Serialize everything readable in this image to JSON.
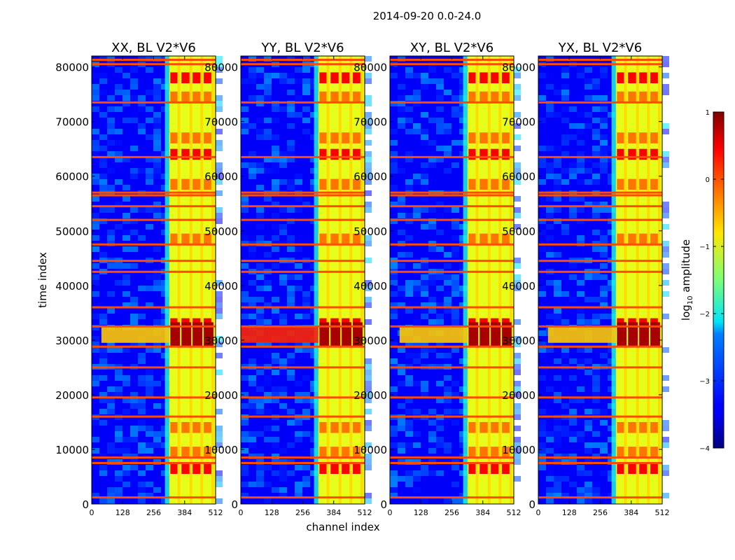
{
  "figure_title": "2014-09-20 0.0-24.0",
  "colorbar": {
    "label_prefix": "log",
    "label_sub": "10",
    "label_suffix": " amplitude",
    "ticks": [
      1,
      0,
      -1,
      -2,
      -3,
      -4
    ],
    "tick_labels": [
      "1",
      "0",
      "−1",
      "−2",
      "−3",
      "−4"
    ],
    "vmin": -4,
    "vmax": 1,
    "colormap": "jet"
  },
  "chart_data": {
    "type": "heatmap",
    "xlabel": "channel index",
    "ylabel": "time index",
    "xlim": [
      0,
      512
    ],
    "ylim": [
      0,
      82000
    ],
    "xticks": [
      0,
      128,
      256,
      384,
      512
    ],
    "xtick_labels": [
      "0",
      "128",
      "256",
      "384",
      "512"
    ],
    "yticks": [
      0,
      10000,
      20000,
      30000,
      40000,
      50000,
      60000,
      70000,
      80000
    ],
    "ytick_labels": [
      "0",
      "10000",
      "20000",
      "30000",
      "40000",
      "50000",
      "60000",
      "70000",
      "80000"
    ],
    "panels": [
      {
        "title": "XX, BL V2*V6",
        "pol": "XX"
      },
      {
        "title": "YY, BL V2*V6",
        "pol": "YY"
      },
      {
        "title": "XY, BL V2*V6",
        "pol": "XY"
      },
      {
        "title": "YX, BL V2*V6",
        "pol": "YX"
      }
    ],
    "features": {
      "background_level": -3.4,
      "active_band_channels": [
        320,
        512
      ],
      "active_band_level": -1.0,
      "vertical_strong_channels": [
        360,
        410,
        455,
        500
      ],
      "horizontal_rfi_times": [
        1200,
        7500,
        8500,
        16000,
        19500,
        25000,
        28800,
        32500,
        36000,
        42500,
        44500,
        47500,
        52000,
        54500,
        56500,
        57000,
        63500,
        73500,
        80500,
        81300
      ],
      "strong_burst_times": [
        30000,
        31000,
        32000
      ],
      "strong_blocks": [
        6500,
        9500,
        14000,
        33000,
        48500,
        58500,
        64000,
        67000,
        74500,
        78000
      ]
    }
  }
}
